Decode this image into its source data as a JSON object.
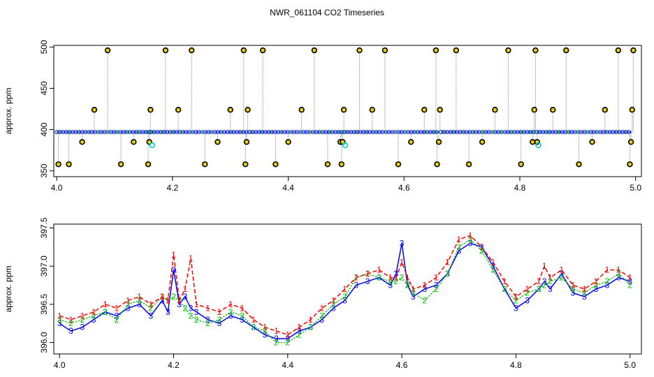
{
  "figure": {
    "title": "NWR_061104  CO2 Timeseries"
  },
  "colors": {
    "raw": "#888888",
    "outlier": "#000000",
    "blue": "#0000ff",
    "green": "#00bb00",
    "red": "#ff0000",
    "cyan": "#00cccc"
  },
  "chart_data": [
    {
      "type": "scatter",
      "title": "",
      "xlabel": "",
      "ylabel": "approx. ppm",
      "xlim": [
        3.995,
        5.01
      ],
      "ylim": [
        343,
        502
      ],
      "xticks": [
        4.0,
        4.2,
        4.4,
        4.6,
        4.8,
        5.0
      ],
      "xtick_labels": [
        "4.0",
        "4.2",
        "4.4",
        "4.6",
        "4.8",
        "5.0"
      ],
      "yticks": [
        350,
        400,
        450,
        500
      ],
      "ytick_labels": [
        "350",
        "400",
        "450",
        "500"
      ],
      "baseline_ppm": 397,
      "outliers": {
        "x": [
          4.003,
          4.021,
          4.044,
          4.065,
          4.088,
          4.111,
          4.133,
          4.158,
          4.16,
          4.162,
          4.188,
          4.21,
          4.233,
          4.256,
          4.278,
          4.3,
          4.323,
          4.326,
          4.328,
          4.33,
          4.356,
          4.378,
          4.4,
          4.423,
          4.445,
          4.468,
          4.49,
          4.492,
          4.494,
          4.496,
          4.523,
          4.545,
          4.567,
          4.59,
          4.612,
          4.635,
          4.655,
          4.657,
          4.66,
          4.662,
          4.69,
          4.712,
          4.735,
          4.757,
          4.78,
          4.802,
          4.822,
          4.825,
          4.827,
          4.83,
          4.857,
          4.88,
          4.902,
          4.925,
          4.947,
          4.97,
          4.99,
          4.992,
          4.994,
          4.996
        ],
        "y": [
          358,
          358,
          385,
          424,
          496,
          358,
          385,
          358,
          385,
          424,
          496,
          424,
          496,
          358,
          385,
          424,
          496,
          358,
          385,
          424,
          496,
          358,
          385,
          424,
          496,
          358,
          385,
          358,
          385,
          424,
          496,
          424,
          496,
          358,
          385,
          424,
          496,
          358,
          385,
          424,
          496,
          358,
          385,
          424,
          496,
          358,
          385,
          424,
          496,
          385,
          424,
          496,
          358,
          385,
          424,
          496,
          358,
          385,
          424,
          496
        ]
      },
      "flagged": {
        "x": [
          4.165,
          4.498,
          4.832
        ],
        "y": [
          381,
          381,
          381
        ]
      }
    },
    {
      "type": "line",
      "title": "",
      "xlabel": "",
      "ylabel": "approx. ppm",
      "xlim": [
        3.99,
        5.02
      ],
      "ylim": [
        395.85,
        397.55
      ],
      "xticks": [
        4.0,
        4.2,
        4.4,
        4.6,
        4.8,
        5.0
      ],
      "xtick_labels": [
        "4.0",
        "4.2",
        "4.4",
        "4.6",
        "4.8",
        "5.0"
      ],
      "yticks": [
        396.0,
        396.5,
        397.0,
        397.5
      ],
      "ytick_labels": [
        "396.0",
        "396.5",
        "397.0",
        "397.5"
      ],
      "x": [
        4.0,
        4.02,
        4.04,
        4.06,
        4.08,
        4.1,
        4.12,
        4.14,
        4.16,
        4.18,
        4.19,
        4.2,
        4.21,
        4.22,
        4.23,
        4.24,
        4.26,
        4.28,
        4.3,
        4.32,
        4.34,
        4.36,
        4.38,
        4.4,
        4.42,
        4.44,
        4.46,
        4.48,
        4.5,
        4.52,
        4.54,
        4.56,
        4.58,
        4.59,
        4.6,
        4.61,
        4.62,
        4.64,
        4.66,
        4.68,
        4.7,
        4.72,
        4.74,
        4.76,
        4.78,
        4.8,
        4.82,
        4.84,
        4.85,
        4.86,
        4.88,
        4.9,
        4.92,
        4.94,
        4.96,
        4.98,
        5.0
      ],
      "series": [
        {
          "name": "3",
          "values": [
            396.25,
            396.15,
            396.2,
            396.3,
            396.4,
            396.35,
            396.45,
            396.5,
            396.35,
            396.55,
            396.4,
            396.95,
            396.5,
            396.6,
            396.45,
            396.4,
            396.3,
            396.25,
            396.35,
            396.3,
            396.2,
            396.1,
            396.05,
            396.05,
            396.15,
            396.2,
            396.3,
            396.45,
            396.55,
            396.75,
            396.8,
            396.85,
            396.75,
            396.9,
            397.3,
            396.75,
            396.6,
            396.7,
            396.75,
            396.9,
            397.2,
            397.3,
            397.25,
            397.0,
            396.7,
            396.45,
            396.55,
            396.7,
            396.8,
            396.7,
            396.9,
            396.65,
            396.6,
            396.7,
            396.75,
            396.85,
            396.8
          ]
        },
        {
          "name": "2",
          "values": [
            396.3,
            396.25,
            396.3,
            396.35,
            396.4,
            396.3,
            396.5,
            396.55,
            396.45,
            396.6,
            396.55,
            396.6,
            396.55,
            396.45,
            396.35,
            396.3,
            396.25,
            396.3,
            396.4,
            396.35,
            396.2,
            396.15,
            396.0,
            396.0,
            396.1,
            396.2,
            396.35,
            396.5,
            396.6,
            396.85,
            396.9,
            396.85,
            396.8,
            396.8,
            396.85,
            396.75,
            396.65,
            396.55,
            396.7,
            396.9,
            397.25,
            397.35,
            397.2,
            396.95,
            396.7,
            396.55,
            396.65,
            396.7,
            396.75,
            396.8,
            396.85,
            396.7,
            396.65,
            396.75,
            396.8,
            396.9,
            396.75
          ]
        },
        {
          "name": "1",
          "values": [
            396.35,
            396.3,
            396.35,
            396.4,
            396.5,
            396.45,
            396.55,
            396.6,
            396.5,
            396.6,
            396.55,
            397.15,
            396.55,
            396.7,
            397.1,
            396.5,
            396.45,
            396.4,
            396.5,
            396.45,
            396.3,
            396.2,
            396.15,
            396.1,
            396.2,
            396.3,
            396.45,
            396.55,
            396.7,
            396.85,
            396.9,
            396.95,
            396.85,
            396.85,
            397.05,
            396.85,
            396.7,
            396.75,
            396.85,
            397.05,
            397.35,
            397.4,
            397.25,
            397.05,
            396.8,
            396.6,
            396.7,
            396.8,
            397.0,
            396.85,
            396.95,
            396.75,
            396.7,
            396.8,
            396.95,
            396.95,
            396.85
          ]
        }
      ]
    }
  ]
}
